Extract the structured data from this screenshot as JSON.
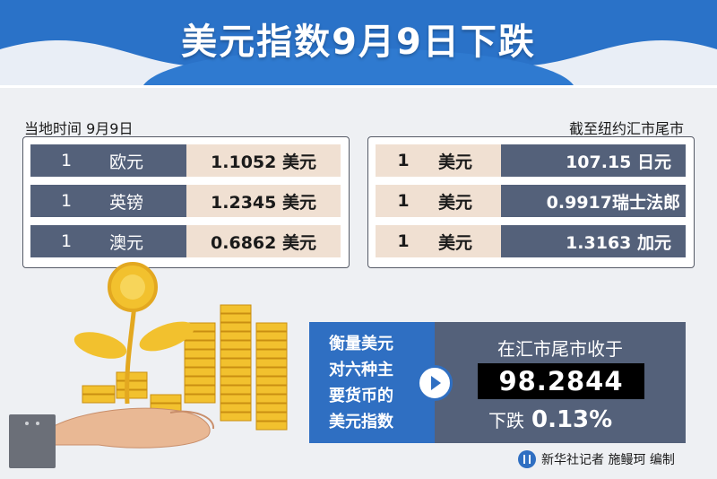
{
  "title": "美元指数9月9日下跌",
  "left_caption": "当地时间  9月9日",
  "right_caption": "截至纽约汇市尾市",
  "left_rows": [
    {
      "amount": "1",
      "currency": "欧元",
      "value": "1.1052 美元"
    },
    {
      "amount": "1",
      "currency": "英镑",
      "value": "1.2345 美元"
    },
    {
      "amount": "1",
      "currency": "澳元",
      "value": "0.6862 美元"
    }
  ],
  "right_rows": [
    {
      "amount": "1",
      "currency": "美元",
      "value": "107.15 日元"
    },
    {
      "amount": "1",
      "currency": "美元",
      "value": "0.9917瑞士法郎"
    },
    {
      "amount": "1",
      "currency": "美元",
      "value": "1.3163 加元"
    }
  ],
  "index_desc": [
    "衡量美元",
    "对六种主",
    "要货币的",
    "美元指数"
  ],
  "index_label": "在汇市尾市收于",
  "index_value": "98.2844",
  "change_label": "下跌",
  "change_pct": "0.13%",
  "credit": "新华社记者 施鳗珂 编制",
  "colors": {
    "banner_blue": "#2167c0",
    "slate": "#54617a",
    "beige": "#f0e0d2",
    "accent_blue": "#2f6fc2",
    "gold": "#f2c12e"
  }
}
